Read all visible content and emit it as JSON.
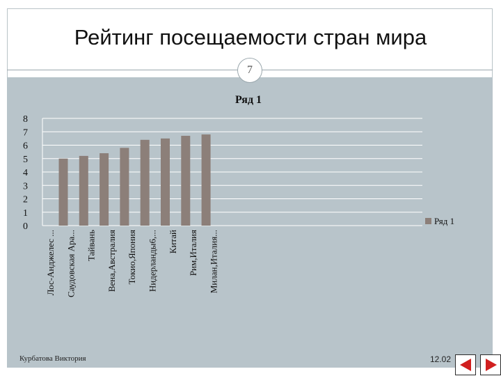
{
  "slide": {
    "title": "Рейтинг посещаемости стран мира",
    "number": "7",
    "footer_author": "Курбатова Виктория",
    "footer_date": "12.02"
  },
  "colors": {
    "bar": "#8c7f79",
    "chart_background": "#b8c4ca",
    "grid": "#ffffff",
    "nav_arrow": "#d11f1f"
  },
  "icons": {
    "prev": "triangle-left-icon",
    "next": "triangle-right-icon"
  },
  "chart_data": {
    "type": "bar",
    "title": "Ряд 1",
    "xlabel": "",
    "ylabel": "",
    "ylim": [
      0,
      8
    ],
    "yticks": [
      0,
      1,
      2,
      3,
      4,
      5,
      6,
      7,
      8
    ],
    "grid": true,
    "legend_placement": "right",
    "categories": [
      "Лос-Анджелес ...",
      "Саудовская Ара...",
      "Тайвань",
      "Вена,Австралия",
      "Токио,Япония",
      "Нидерланды6,...",
      "Китай",
      "Рим,Италия",
      "Милан,Италия..."
    ],
    "series": [
      {
        "name": "Ряд 1",
        "values": [
          5.0,
          5.2,
          5.4,
          5.8,
          6.4,
          6.5,
          6.7,
          6.8,
          0
        ]
      }
    ]
  }
}
